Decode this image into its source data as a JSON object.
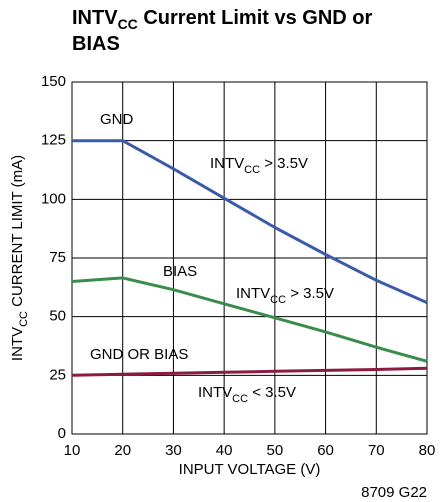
{
  "chart_data": {
    "type": "line",
    "title": [
      "INTV",
      "CC",
      " Current Limit vs GND or BIAS"
    ],
    "x_label": "INPUT VOLTAGE (V)",
    "y_label": [
      "INTV",
      "CC",
      " CURRENT LIMIT (mA)"
    ],
    "footnote": "8709 G22",
    "x": [
      10,
      20,
      30,
      40,
      50,
      60,
      70,
      80
    ],
    "series": [
      {
        "name": "GND",
        "color": "#3b5ba9",
        "values": [
          125,
          125,
          113,
          100.5,
          88,
          76.5,
          65.5,
          56
        ]
      },
      {
        "name": "BIAS",
        "color": "#3a8c4c",
        "values": [
          65,
          66.5,
          61.5,
          55.5,
          49.5,
          43.5,
          37,
          31
        ]
      },
      {
        "name": "GND OR BIAS",
        "color": "#8c1c3e",
        "values": [
          25,
          25.5,
          25.9,
          26.3,
          26.7,
          27.1,
          27.5,
          28
        ]
      }
    ],
    "annotations": [
      [
        "INTV",
        "CC",
        " > 3.5V"
      ],
      [
        "INTV",
        "CC",
        " > 3.5V"
      ],
      [
        "INTV",
        "CC",
        " < 3.5V"
      ]
    ],
    "xlim": [
      10,
      80
    ],
    "ylim": [
      0,
      150
    ],
    "xticks": [
      10,
      20,
      30,
      40,
      50,
      60,
      70,
      80
    ],
    "yticks": [
      0,
      25,
      50,
      75,
      100,
      125,
      150
    ],
    "grid": true
  }
}
